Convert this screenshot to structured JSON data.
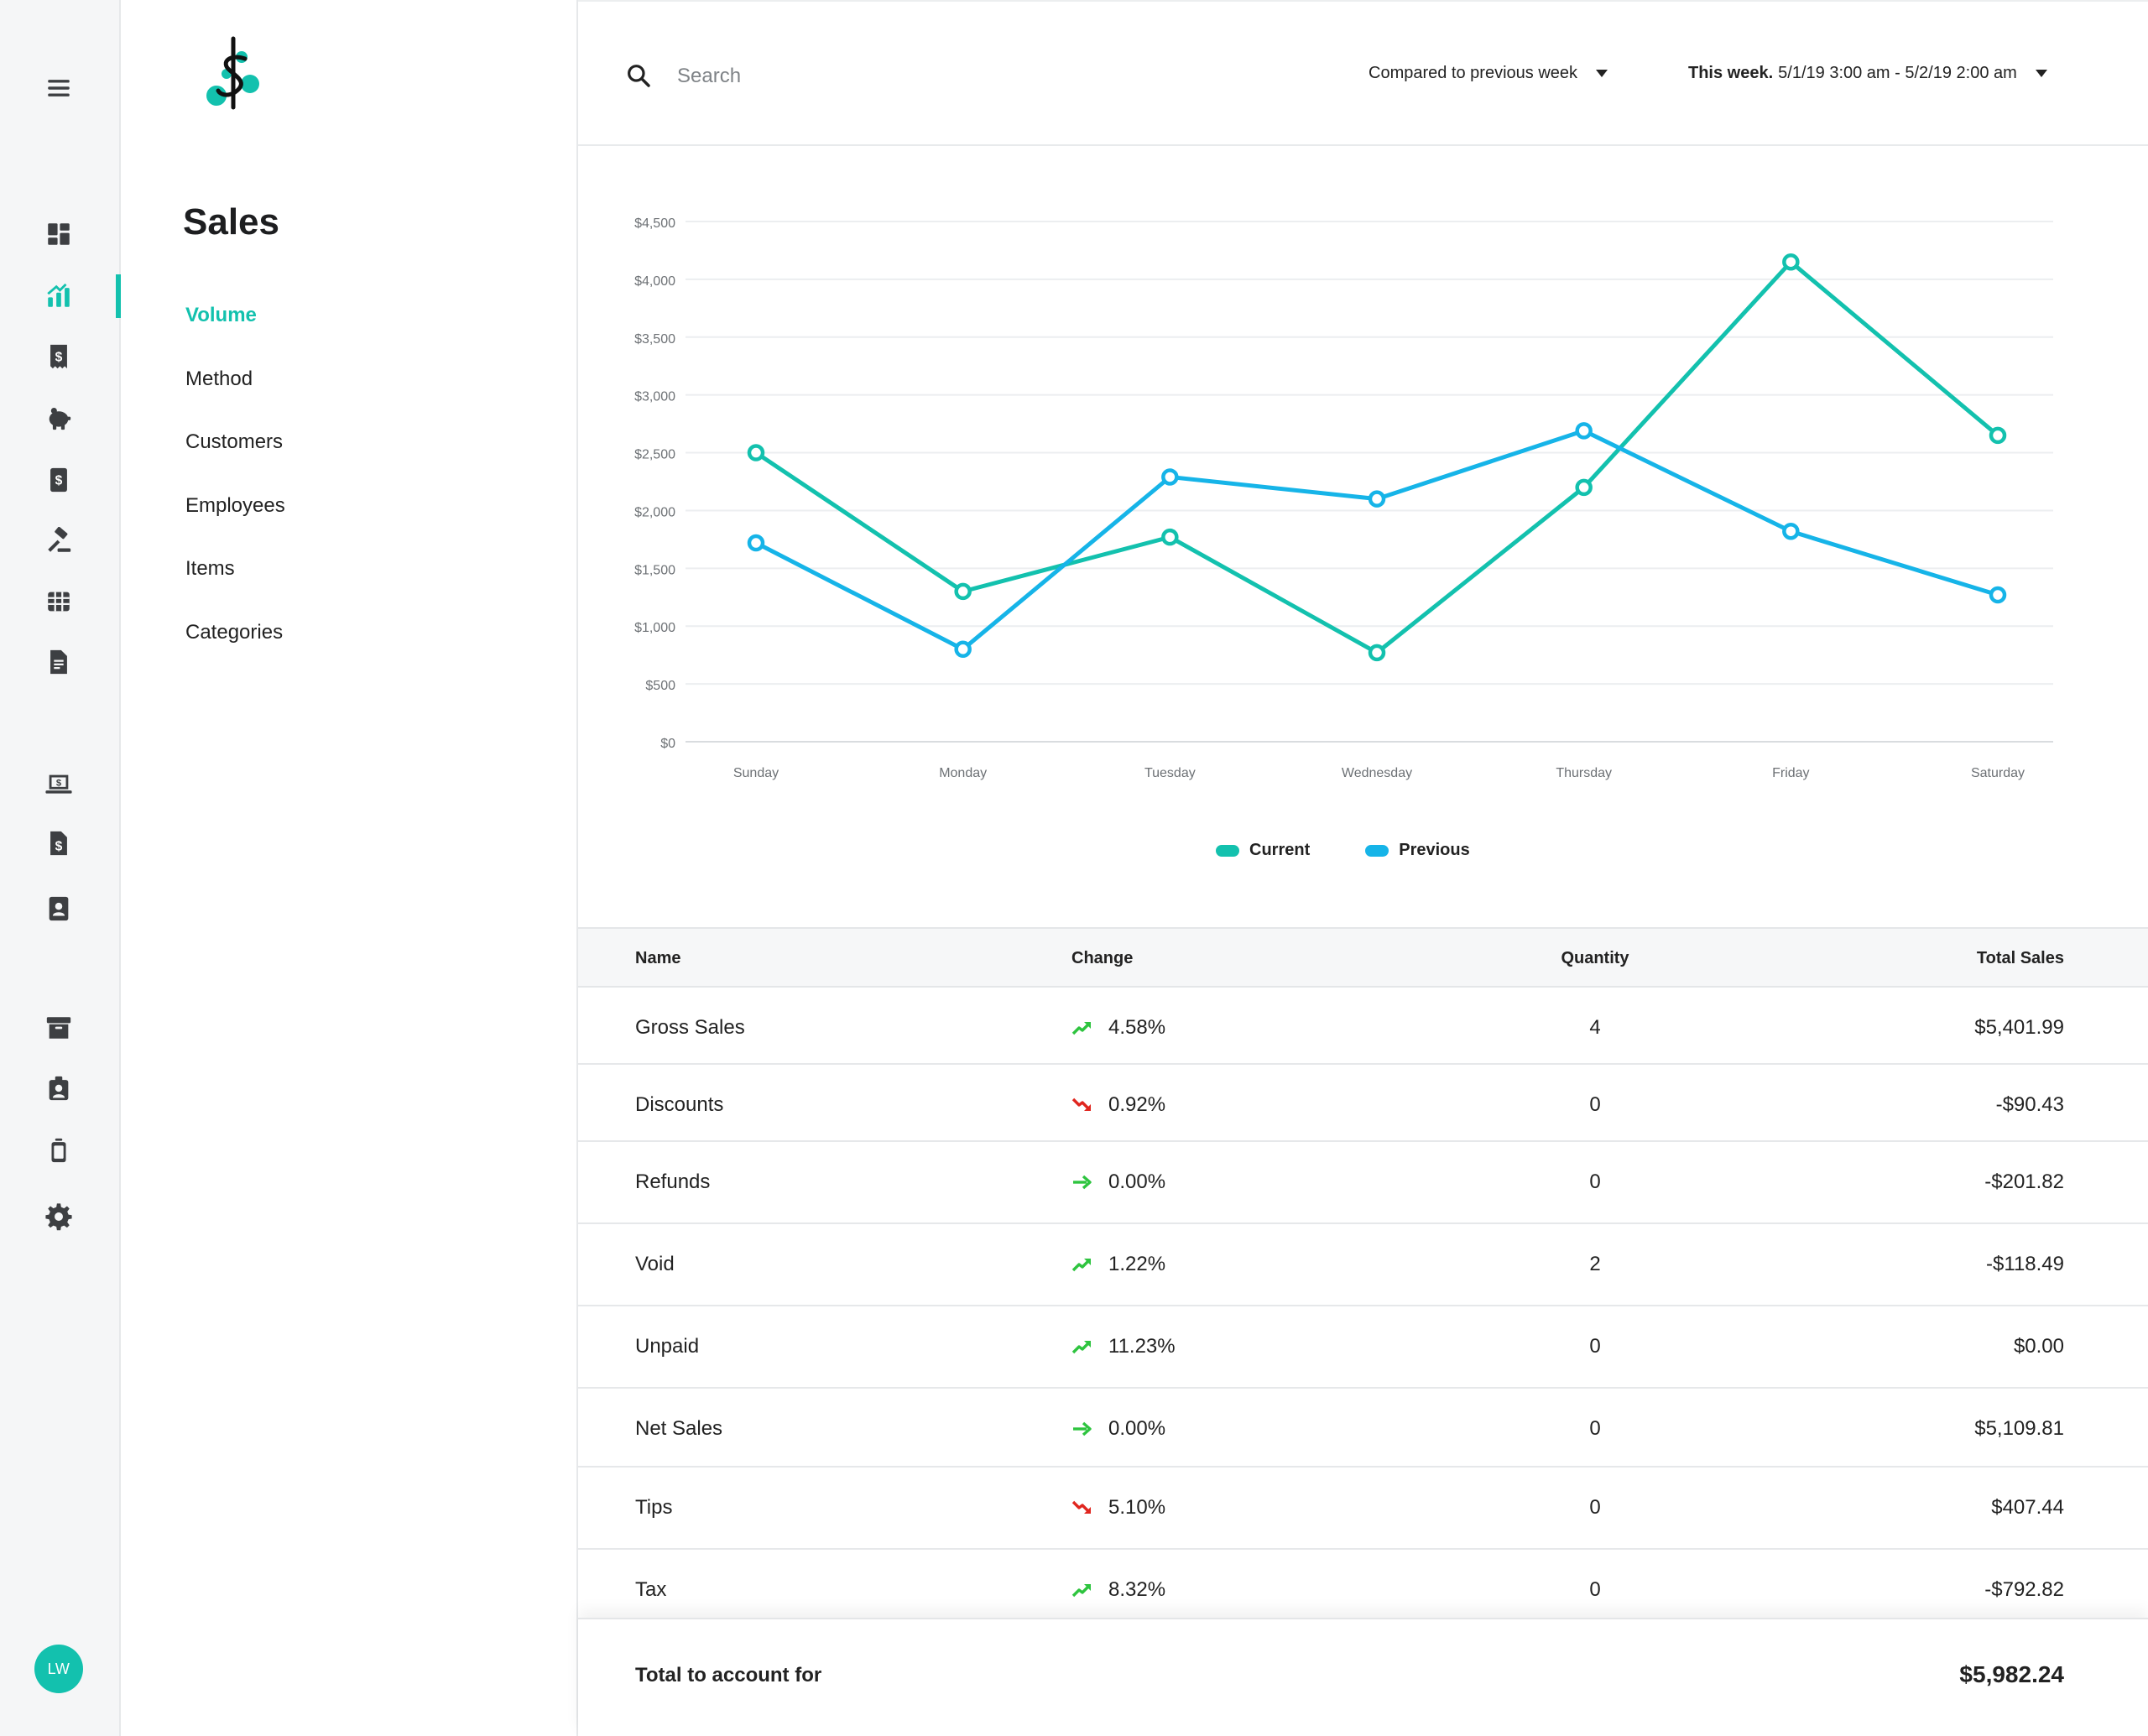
{
  "rail": {
    "items": [
      {
        "icon": "dashboard-icon",
        "active": false
      },
      {
        "icon": "reports-icon",
        "active": true
      },
      {
        "icon": "sales-receipt-icon",
        "active": false
      },
      {
        "icon": "piggy-bank-icon",
        "active": false
      },
      {
        "icon": "invoice-icon",
        "active": false
      },
      {
        "icon": "gavel-icon",
        "active": false
      },
      {
        "icon": "table-grid-icon",
        "active": false
      },
      {
        "icon": "document-icon",
        "active": false
      },
      {
        "icon": "laptop-payment-icon",
        "active": false
      },
      {
        "icon": "file-dollar-icon",
        "active": false
      },
      {
        "icon": "contacts-book-icon",
        "active": false
      },
      {
        "icon": "archive-icon",
        "active": false
      },
      {
        "icon": "employee-badge-icon",
        "active": false
      },
      {
        "icon": "device-icon",
        "active": false
      },
      {
        "icon": "settings-gear-icon",
        "active": false
      }
    ],
    "avatar_initials": "LW",
    "accent_color": "#13c1ae"
  },
  "subnav": {
    "title": "Sales",
    "items": [
      "Volume",
      "Method",
      "Customers",
      "Employees",
      "Items",
      "Categories"
    ],
    "active_index": 0
  },
  "topbar": {
    "search_placeholder": "Search",
    "compare_label": "Compared to previous week",
    "range_prefix": "This week.",
    "range_value": "5/1/19 3:00 am - 5/2/19 2:00 am"
  },
  "chart_data": {
    "type": "line",
    "categories": [
      "Sunday",
      "Monday",
      "Tuesday",
      "Wednesday",
      "Thursday",
      "Friday",
      "Saturday"
    ],
    "series": [
      {
        "name": "Current",
        "color": "#13c1ae",
        "values": [
          2500,
          1300,
          1770,
          770,
          2200,
          4150,
          2650
        ]
      },
      {
        "name": "Previous",
        "color": "#16b4e8",
        "values": [
          1720,
          800,
          2290,
          2100,
          2690,
          1820,
          1270
        ]
      }
    ],
    "ylim": [
      0,
      4500
    ],
    "yticks": [
      "$0",
      "$500",
      "$1,000",
      "$1,500",
      "$2,000",
      "$2,500",
      "$3,000",
      "$3,500",
      "$4,000",
      "$4,500"
    ],
    "grid": true,
    "legend": "bottom-center"
  },
  "table": {
    "headers": {
      "name": "Name",
      "change": "Change",
      "quantity": "Quantity",
      "total": "Total Sales"
    },
    "rows": [
      {
        "name": "Gross Sales",
        "trend": "up",
        "change": "4.58%",
        "quantity": "4",
        "total": "$5,401.99"
      },
      {
        "name": "Discounts",
        "trend": "down",
        "change": "0.92%",
        "quantity": "0",
        "total": "-$90.43"
      },
      {
        "name": "Refunds",
        "trend": "flat",
        "change": "0.00%",
        "quantity": "0",
        "total": "-$201.82"
      },
      {
        "name": "Void",
        "trend": "up",
        "change": "1.22%",
        "quantity": "2",
        "total": "-$118.49"
      },
      {
        "name": "Unpaid",
        "trend": "up",
        "change": "11.23%",
        "quantity": "0",
        "total": "$0.00"
      },
      {
        "name": "Net Sales",
        "trend": "flat",
        "change": "0.00%",
        "quantity": "0",
        "total": "$5,109.81"
      },
      {
        "name": "Tips",
        "trend": "down",
        "change": "5.10%",
        "quantity": "0",
        "total": "$407.44"
      },
      {
        "name": "Tax",
        "trend": "up",
        "change": "8.32%",
        "quantity": "0",
        "total": "-$792.82"
      }
    ],
    "footer": {
      "label": "Total to account for",
      "value": "$5,982.24"
    },
    "trend_colors": {
      "up": "#2ec43f",
      "flat": "#2ec43f",
      "down": "#e0261f"
    }
  }
}
